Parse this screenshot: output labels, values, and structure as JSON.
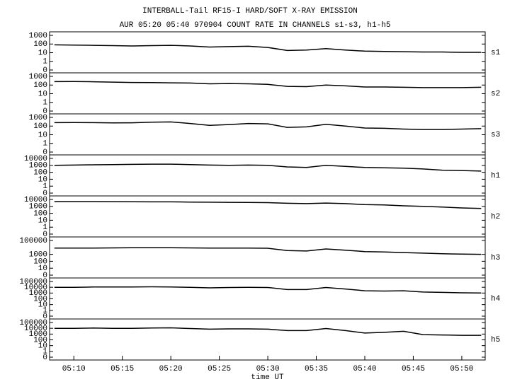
{
  "chart_data": [
    {
      "type": "line",
      "title": "INTERBALL-Tail RF15-I HARD/SOFT X-RAY EMISSION",
      "subtitle": "AUR 05:20 05:40 970904  COUNT RATE IN CHANNELS s1-s3, h1-h5",
      "log": true,
      "xlim": [
        "05:07:30",
        "05:52:25"
      ],
      "x": [
        "05:08",
        "05:10",
        "05:12",
        "05:14",
        "05:16",
        "05:18",
        "05:20",
        "05:22",
        "05:24",
        "05:26",
        "05:28",
        "05:30",
        "05:32",
        "05:34",
        "05:36",
        "05:38",
        "05:40",
        "05:42",
        "05:44",
        "05:46",
        "05:48",
        "05:50",
        "05:52"
      ],
      "ylim": [
        0,
        1000
      ],
      "yticks": [
        0,
        1,
        10,
        100,
        1000
      ],
      "series": [
        {
          "name": "s1",
          "color": "#000000",
          "values": [
            80,
            75,
            70,
            65,
            60,
            65,
            70,
            60,
            45,
            50,
            55,
            40,
            18,
            20,
            30,
            20,
            15,
            14,
            13,
            12,
            12,
            11,
            11
          ]
        }
      ]
    },
    {
      "type": "line",
      "log": true,
      "xlim": [
        "05:07:30",
        "05:52:25"
      ],
      "x": [
        "05:08",
        "05:10",
        "05:12",
        "05:14",
        "05:16",
        "05:18",
        "05:20",
        "05:22",
        "05:24",
        "05:26",
        "05:28",
        "05:30",
        "05:32",
        "05:34",
        "05:36",
        "05:38",
        "05:40",
        "05:42",
        "05:44",
        "05:46",
        "05:48",
        "05:50",
        "05:52"
      ],
      "ylim": [
        0,
        1000
      ],
      "yticks": [
        0,
        1,
        10,
        100,
        1000
      ],
      "series": [
        {
          "name": "s2",
          "color": "#000000",
          "values": [
            250,
            260,
            240,
            220,
            200,
            190,
            180,
            170,
            140,
            150,
            140,
            120,
            70,
            65,
            100,
            80,
            60,
            60,
            55,
            50,
            50,
            50,
            55
          ]
        }
      ]
    },
    {
      "type": "line",
      "log": true,
      "xlim": [
        "05:07:30",
        "05:52:25"
      ],
      "x": [
        "05:08",
        "05:10",
        "05:12",
        "05:14",
        "05:16",
        "05:18",
        "05:20",
        "05:22",
        "05:24",
        "05:26",
        "05:28",
        "05:30",
        "05:32",
        "05:34",
        "05:36",
        "05:38",
        "05:40",
        "05:42",
        "05:44",
        "05:46",
        "05:48",
        "05:50",
        "05:52"
      ],
      "ylim": [
        0,
        1000
      ],
      "yticks": [
        0,
        1,
        10,
        100,
        1000
      ],
      "series": [
        {
          "name": "s3",
          "color": "#000000",
          "values": [
            250,
            260,
            250,
            230,
            240,
            280,
            300,
            200,
            120,
            150,
            200,
            180,
            70,
            80,
            160,
            100,
            60,
            55,
            45,
            40,
            40,
            45,
            50
          ]
        }
      ]
    },
    {
      "type": "line",
      "log": true,
      "xlim": [
        "05:07:30",
        "05:52:25"
      ],
      "x": [
        "05:08",
        "05:10",
        "05:12",
        "05:14",
        "05:16",
        "05:18",
        "05:20",
        "05:22",
        "05:24",
        "05:26",
        "05:28",
        "05:30",
        "05:32",
        "05:34",
        "05:36",
        "05:38",
        "05:40",
        "05:42",
        "05:44",
        "05:46",
        "05:48",
        "05:50",
        "05:52"
      ],
      "ylim": [
        0,
        10000
      ],
      "yticks": [
        0,
        1,
        10,
        100,
        1000,
        10000
      ],
      "series": [
        {
          "name": "h1",
          "color": "#000000",
          "values": [
            1000,
            1100,
            1200,
            1300,
            1400,
            1500,
            1500,
            1300,
            1100,
            1000,
            1100,
            1000,
            600,
            500,
            1000,
            700,
            500,
            450,
            400,
            300,
            200,
            180,
            150
          ]
        }
      ]
    },
    {
      "type": "line",
      "log": true,
      "xlim": [
        "05:07:30",
        "05:52:25"
      ],
      "x": [
        "05:08",
        "05:10",
        "05:12",
        "05:14",
        "05:16",
        "05:18",
        "05:20",
        "05:22",
        "05:24",
        "05:26",
        "05:28",
        "05:30",
        "05:32",
        "05:34",
        "05:36",
        "05:38",
        "05:40",
        "05:42",
        "05:44",
        "05:46",
        "05:48",
        "05:50",
        "05:52"
      ],
      "ylim": [
        0,
        10000
      ],
      "yticks": [
        0,
        1,
        10,
        100,
        1000,
        10000
      ],
      "series": [
        {
          "name": "h2",
          "color": "#000000",
          "values": [
            5000,
            5000,
            5000,
            4800,
            4600,
            4500,
            4500,
            4200,
            4000,
            3800,
            3600,
            3500,
            2800,
            2500,
            3000,
            2500,
            1800,
            1600,
            1200,
            1000,
            800,
            600,
            500
          ]
        }
      ]
    },
    {
      "type": "line",
      "log": true,
      "xlim": [
        "05:07:30",
        "05:52:25"
      ],
      "x": [
        "05:08",
        "05:10",
        "05:12",
        "05:14",
        "05:16",
        "05:18",
        "05:20",
        "05:22",
        "05:24",
        "05:26",
        "05:28",
        "05:30",
        "05:32",
        "05:34",
        "05:36",
        "05:38",
        "05:40",
        "05:42",
        "05:44",
        "05:46",
        "05:48",
        "05:50",
        "05:52"
      ],
      "ylim": [
        0,
        100000
      ],
      "yticks": [
        0,
        10,
        100,
        1000,
        100000
      ],
      "series": [
        {
          "name": "h3",
          "color": "#000000",
          "values": [
            8000,
            8000,
            8000,
            8500,
            9000,
            9000,
            9000,
            8500,
            8000,
            8000,
            8000,
            7500,
            3500,
            3000,
            6000,
            4000,
            2500,
            2200,
            1800,
            1500,
            1200,
            1100,
            1000
          ]
        }
      ]
    },
    {
      "type": "line",
      "log": true,
      "xlim": [
        "05:07:30",
        "05:52:25"
      ],
      "x": [
        "05:08",
        "05:10",
        "05:12",
        "05:14",
        "05:16",
        "05:18",
        "05:20",
        "05:22",
        "05:24",
        "05:26",
        "05:28",
        "05:30",
        "05:32",
        "05:34",
        "05:36",
        "05:38",
        "05:40",
        "05:42",
        "05:44",
        "05:46",
        "05:48",
        "05:50",
        "05:52"
      ],
      "ylim": [
        0,
        100000
      ],
      "yticks": [
        0,
        1,
        10,
        100,
        1000,
        10000,
        100000
      ],
      "series": [
        {
          "name": "h4",
          "color": "#000000",
          "values": [
            10000,
            10000,
            11000,
            11000,
            11000,
            12000,
            11000,
            10000,
            8000,
            9000,
            10000,
            9000,
            4000,
            4000,
            9000,
            5000,
            2500,
            2200,
            2500,
            1500,
            1300,
            1100,
            1000
          ]
        }
      ]
    },
    {
      "type": "line",
      "log": true,
      "xlim": [
        "05:07:30",
        "05:52:25"
      ],
      "x": [
        "05:08",
        "05:10",
        "05:12",
        "05:14",
        "05:16",
        "05:18",
        "05:20",
        "05:22",
        "05:24",
        "05:26",
        "05:28",
        "05:30",
        "05:32",
        "05:34",
        "05:36",
        "05:38",
        "05:40",
        "05:42",
        "05:44",
        "05:46",
        "05:48",
        "05:50",
        "05:52"
      ],
      "ylim": [
        0,
        100000
      ],
      "yticks": [
        0,
        1,
        10,
        100,
        1000,
        10000,
        100000
      ],
      "xticks": [
        "05:10",
        "05:15",
        "05:20",
        "05:25",
        "05:30",
        "05:35",
        "05:40",
        "05:45",
        "05:50"
      ],
      "xlabel": "time UT",
      "series": [
        {
          "name": "h5",
          "color": "#000000",
          "values": [
            10000,
            10000,
            11000,
            10000,
            10000,
            11000,
            12000,
            9000,
            7000,
            8000,
            8000,
            7000,
            4000,
            4000,
            9000,
            4000,
            1500,
            2000,
            3000,
            800,
            700,
            600,
            600
          ]
        }
      ]
    }
  ]
}
